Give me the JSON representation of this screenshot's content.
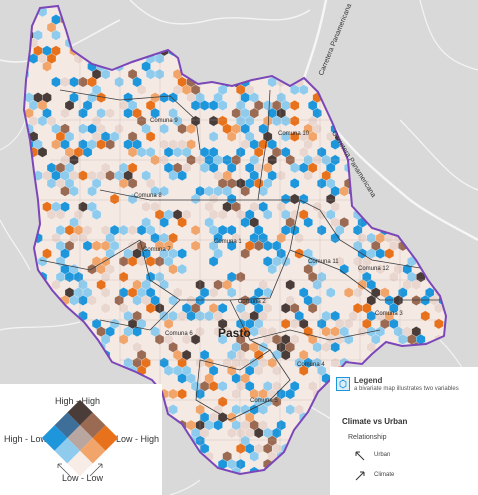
{
  "map": {
    "city_label": "Pasto",
    "roads": [
      "Carretera Panamericana",
      "Carretera Panamericana"
    ],
    "comunas": [
      {
        "name": "Comuna 9"
      },
      {
        "name": "Comuna 10"
      },
      {
        "name": "Comuna 8"
      },
      {
        "name": "Comuna 1"
      },
      {
        "name": "Comuna 7"
      },
      {
        "name": "Comuna 11"
      },
      {
        "name": "Comuna 12"
      },
      {
        "name": "Comuna 2"
      },
      {
        "name": "Comuna 6"
      },
      {
        "name": "Comuna 3"
      },
      {
        "name": "Comuna 4"
      },
      {
        "name": "Comuna 5"
      }
    ],
    "colors": {
      "high_high": "#4a3c38",
      "urban_high": "#e8711c",
      "climate_high": "#1e96dc",
      "low_low": "#f7ece6",
      "boundary": "#7b46b8",
      "background": "#d9d9d9"
    }
  },
  "legend_diamond": {
    "top_label": "High - High",
    "left_label": "High - Low",
    "right_label": "Low - High",
    "bottom_label": "Low - Low"
  },
  "legend_panel": {
    "title": "Legend",
    "subtitle": "a bivariate map illustrates two variables",
    "section_title": "Climate vs Urban",
    "relationship_label": "Relationship",
    "urban_label": "Urban",
    "climate_label": "Climate"
  }
}
